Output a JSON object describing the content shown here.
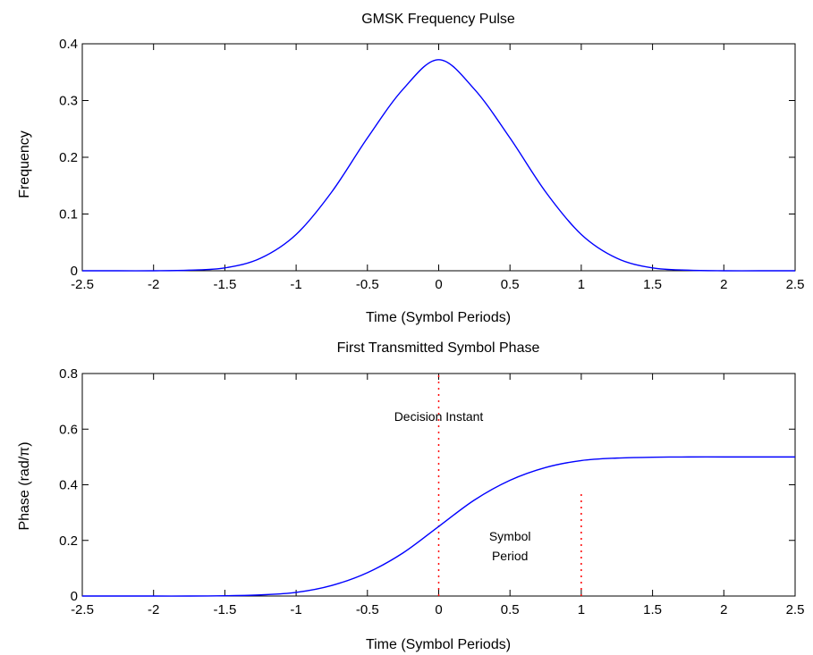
{
  "chart_data": [
    {
      "type": "line",
      "title": "GMSK Frequency Pulse",
      "xlabel": "Time (Symbol Periods)",
      "ylabel": "Frequency",
      "xlim": [
        -2.5,
        2.5
      ],
      "ylim": [
        0,
        0.4
      ],
      "xticks": [
        -2.5,
        -2,
        -1.5,
        -1,
        -0.5,
        0,
        0.5,
        1,
        1.5,
        2,
        2.5
      ],
      "xtick_labels": [
        "-2.5",
        "-2",
        "-1.5",
        "-1",
        "-0.5",
        "0",
        "0.5",
        "1",
        "1.5",
        "2",
        "2.5"
      ],
      "yticks": [
        0,
        0.1,
        0.2,
        0.3,
        0.4
      ],
      "ytick_labels": [
        "0",
        "0.1",
        "0.2",
        "0.3",
        "0.4"
      ],
      "grid": false,
      "series": [
        {
          "color": "#0000ff",
          "x": [
            -2.5,
            -2.25,
            -2.0,
            -1.75,
            -1.5,
            -1.25,
            -1.0,
            -0.75,
            -0.5,
            -0.25,
            0.0,
            0.25,
            0.5,
            0.75,
            1.0,
            1.25,
            1.5,
            1.75,
            2.0,
            2.25,
            2.5
          ],
          "y": [
            0.0,
            0.0,
            0.0,
            0.001,
            0.005,
            0.022,
            0.064,
            0.139,
            0.234,
            0.32,
            0.372,
            0.32,
            0.234,
            0.139,
            0.064,
            0.022,
            0.005,
            0.001,
            0.0,
            0.0,
            0.0
          ]
        }
      ],
      "annotations": []
    },
    {
      "type": "line",
      "title": "First Transmitted Symbol Phase",
      "xlabel": "Time (Symbol Periods)",
      "ylabel": "Phase (rad/π)",
      "xlim": [
        -2.5,
        2.5
      ],
      "ylim": [
        0,
        0.8
      ],
      "xticks": [
        -2.5,
        -2,
        -1.5,
        -1,
        -0.5,
        0,
        0.5,
        1,
        1.5,
        2,
        2.5
      ],
      "xtick_labels": [
        "-2.5",
        "-2",
        "-1.5",
        "-1",
        "-0.5",
        "0",
        "0.5",
        "1",
        "1.5",
        "2",
        "2.5"
      ],
      "yticks": [
        0,
        0.2,
        0.4,
        0.6,
        0.8
      ],
      "ytick_labels": [
        "0",
        "0.2",
        "0.4",
        "0.6",
        "0.8"
      ],
      "grid": false,
      "series": [
        {
          "color": "#0000ff",
          "x": [
            -2.5,
            -2.25,
            -2.0,
            -1.75,
            -1.5,
            -1.25,
            -1.0,
            -0.75,
            -0.5,
            -0.25,
            0.0,
            0.25,
            0.5,
            0.75,
            1.0,
            1.25,
            1.5,
            1.75,
            2.0,
            2.25,
            2.5
          ],
          "y": [
            0.0,
            0.0,
            0.0,
            0.0,
            0.001,
            0.004,
            0.013,
            0.038,
            0.084,
            0.155,
            0.25,
            0.345,
            0.416,
            0.462,
            0.487,
            0.496,
            0.499,
            0.5,
            0.5,
            0.5,
            0.5
          ]
        }
      ],
      "vlines": [
        {
          "x": 0,
          "ymin": 0,
          "ymax": 0.8,
          "color": "#ff0000",
          "style": "dotted"
        },
        {
          "x": 1,
          "ymin": 0,
          "ymax": 0.38,
          "color": "#ff0000",
          "style": "dotted"
        }
      ],
      "annotations": [
        {
          "lines": [
            "Decision Instant"
          ],
          "x": 0,
          "y": 0.63
        },
        {
          "lines": [
            "Symbol",
            "Period"
          ],
          "x": 0.5,
          "y": 0.2
        }
      ]
    }
  ]
}
